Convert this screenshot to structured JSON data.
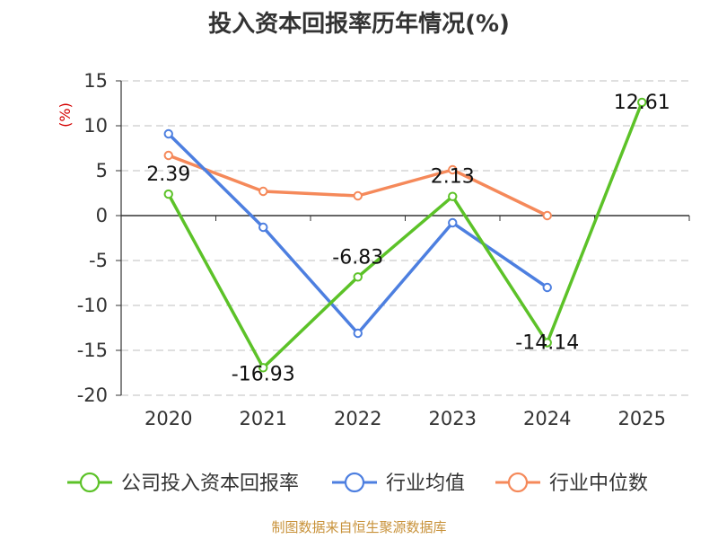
{
  "title": "投入资本回报率历年情况(%)",
  "source": "制图数据来自恒生聚源数据库",
  "chart_data": {
    "type": "line",
    "categories": [
      "2020",
      "2021",
      "2022",
      "2023",
      "2024",
      "2025"
    ],
    "ylabel": "(%)",
    "ylim": [
      -20,
      15
    ],
    "yticks": [
      15,
      10,
      5,
      0,
      -5,
      -10,
      -15,
      -20
    ],
    "grid": true,
    "legend_placement": "bottom",
    "series": [
      {
        "name": "公司投入资本回报率",
        "color": "#5cc228",
        "values": [
          2.39,
          -16.93,
          -6.83,
          2.13,
          -14.14,
          12.61
        ],
        "labels": [
          "2.39",
          "-16.93",
          "-6.83",
          "2.13",
          "-14.14",
          "12.61"
        ]
      },
      {
        "name": "行业均值",
        "color": "#4d7fe0",
        "values": [
          9.1,
          -1.3,
          -13.1,
          -0.8,
          -8.0,
          null
        ]
      },
      {
        "name": "行业中位数",
        "color": "#f5895a",
        "values": [
          6.7,
          2.7,
          2.2,
          5.1,
          0.0,
          null
        ]
      }
    ]
  }
}
